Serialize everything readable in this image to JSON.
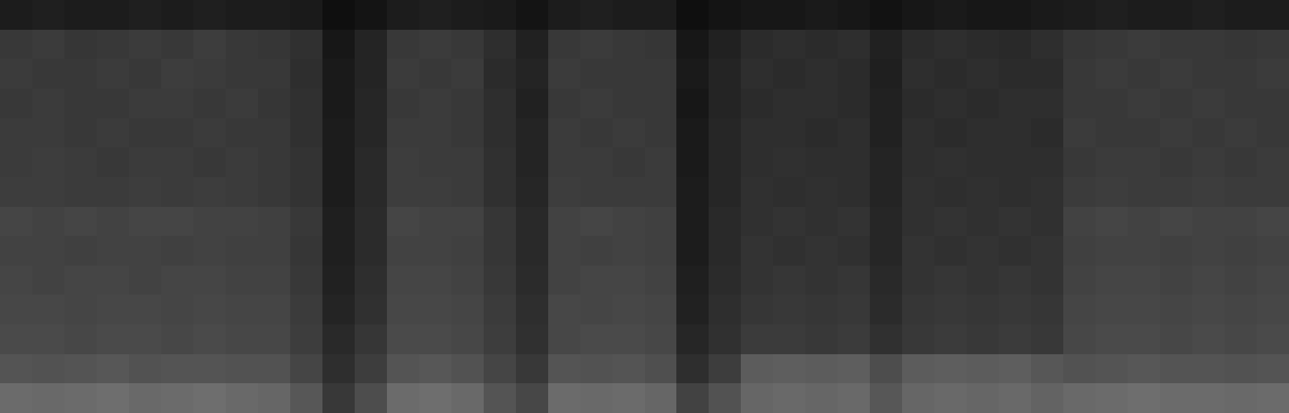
{
  "chart_data": {
    "type": "heatmap",
    "tick_labels": false,
    "grid": false,
    "zlim": [
      0,
      100
    ],
    "cells": [
      [
        11,
        12,
        11,
        11,
        12,
        11,
        12,
        11,
        11,
        10,
        6,
        8,
        11,
        12,
        11,
        10,
        8,
        11,
        12,
        11,
        11,
        6,
        8,
        9,
        9,
        10,
        9,
        7,
        9,
        10,
        9,
        9,
        10,
        11,
        12,
        11,
        11,
        12,
        11,
        11
      ],
      [
        22,
        23,
        21,
        22,
        23,
        22,
        24,
        22,
        21,
        19,
        9,
        14,
        22,
        23,
        22,
        18,
        13,
        22,
        23,
        22,
        21,
        9,
        13,
        17,
        18,
        17,
        18,
        13,
        17,
        18,
        17,
        16,
        18,
        21,
        22,
        23,
        22,
        22,
        21,
        22
      ],
      [
        23,
        22,
        22,
        23,
        22,
        24,
        23,
        22,
        22,
        18,
        10,
        14,
        23,
        22,
        23,
        17,
        14,
        23,
        22,
        22,
        22,
        10,
        14,
        18,
        17,
        18,
        17,
        12,
        18,
        17,
        18,
        17,
        17,
        22,
        23,
        22,
        23,
        22,
        22,
        23
      ],
      [
        22,
        23,
        22,
        22,
        23,
        23,
        22,
        23,
        21,
        19,
        10,
        15,
        22,
        23,
        22,
        18,
        13,
        22,
        23,
        22,
        22,
        9,
        14,
        17,
        18,
        18,
        17,
        13,
        17,
        18,
        17,
        18,
        18,
        22,
        22,
        23,
        22,
        23,
        22,
        22
      ],
      [
        23,
        23,
        22,
        23,
        22,
        22,
        23,
        22,
        22,
        19,
        11,
        15,
        23,
        23,
        22,
        18,
        14,
        23,
        22,
        23,
        22,
        10,
        15,
        18,
        18,
        17,
        18,
        13,
        18,
        17,
        18,
        18,
        17,
        23,
        22,
        22,
        23,
        22,
        23,
        22
      ],
      [
        23,
        24,
        23,
        22,
        23,
        23,
        22,
        23,
        22,
        20,
        11,
        16,
        24,
        23,
        23,
        19,
        14,
        23,
        23,
        22,
        23,
        10,
        15,
        18,
        19,
        18,
        18,
        14,
        18,
        19,
        18,
        18,
        18,
        22,
        23,
        23,
        22,
        23,
        22,
        23
      ],
      [
        24,
        24,
        23,
        23,
        24,
        23,
        24,
        23,
        22,
        20,
        11,
        16,
        24,
        24,
        23,
        19,
        15,
        24,
        23,
        23,
        23,
        11,
        15,
        19,
        18,
        19,
        18,
        14,
        19,
        18,
        19,
        18,
        19,
        23,
        24,
        23,
        23,
        24,
        23,
        23
      ],
      [
        27,
        26,
        27,
        26,
        27,
        27,
        26,
        26,
        25,
        22,
        12,
        17,
        27,
        26,
        26,
        21,
        16,
        26,
        27,
        26,
        25,
        11,
        16,
        19,
        20,
        19,
        20,
        15,
        19,
        20,
        19,
        20,
        19,
        26,
        27,
        26,
        27,
        26,
        26,
        27
      ],
      [
        26,
        26,
        25,
        26,
        26,
        25,
        26,
        25,
        25,
        21,
        12,
        17,
        26,
        26,
        25,
        21,
        16,
        26,
        25,
        26,
        25,
        11,
        16,
        20,
        19,
        20,
        19,
        15,
        20,
        19,
        20,
        19,
        20,
        25,
        26,
        26,
        25,
        26,
        25,
        26
      ],
      [
        27,
        26,
        27,
        27,
        26,
        27,
        27,
        26,
        26,
        22,
        13,
        18,
        27,
        27,
        26,
        22,
        17,
        26,
        27,
        27,
        26,
        12,
        17,
        20,
        21,
        20,
        21,
        16,
        20,
        21,
        20,
        21,
        20,
        26,
        27,
        27,
        26,
        27,
        26,
        27
      ],
      [
        28,
        28,
        27,
        28,
        28,
        27,
        28,
        27,
        27,
        23,
        14,
        19,
        28,
        28,
        27,
        23,
        18,
        28,
        27,
        28,
        27,
        13,
        18,
        21,
        22,
        21,
        22,
        17,
        21,
        22,
        21,
        22,
        21,
        27,
        28,
        28,
        27,
        28,
        27,
        28
      ],
      [
        29,
        29,
        28,
        29,
        29,
        28,
        29,
        28,
        28,
        24,
        16,
        21,
        29,
        29,
        28,
        24,
        19,
        28,
        29,
        29,
        28,
        15,
        19,
        23,
        23,
        22,
        23,
        19,
        22,
        23,
        22,
        23,
        22,
        28,
        29,
        29,
        28,
        29,
        28,
        29
      ],
      [
        33,
        32,
        33,
        34,
        32,
        33,
        33,
        32,
        32,
        27,
        18,
        24,
        33,
        34,
        32,
        27,
        22,
        33,
        32,
        33,
        31,
        18,
        24,
        36,
        37,
        36,
        37,
        30,
        36,
        37,
        36,
        37,
        34,
        32,
        33,
        34,
        33,
        33,
        32,
        33
      ],
      [
        42,
        41,
        42,
        43,
        41,
        42,
        43,
        41,
        40,
        34,
        22,
        30,
        42,
        43,
        41,
        33,
        28,
        42,
        41,
        42,
        40,
        26,
        32,
        40,
        41,
        40,
        41,
        34,
        40,
        41,
        40,
        41,
        39,
        41,
        42,
        43,
        42,
        42,
        41,
        42
      ]
    ]
  }
}
